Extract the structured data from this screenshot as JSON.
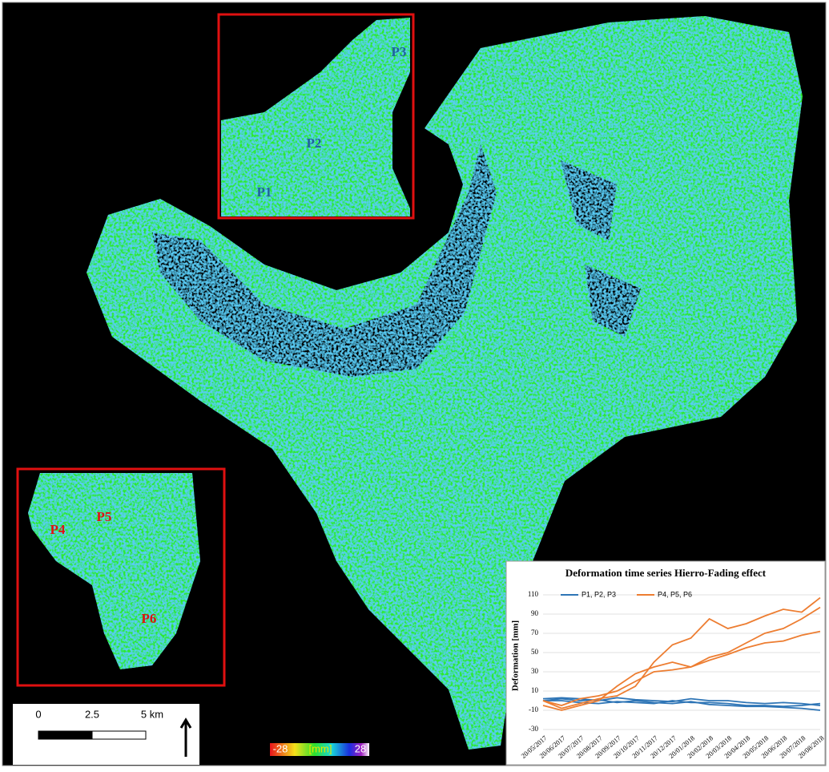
{
  "map": {
    "north_inset_labels": [
      "P1",
      "P2",
      "P3"
    ],
    "south_inset_labels": [
      "P4",
      "P5",
      "P6"
    ],
    "scale_bar": [
      "0",
      "2.5",
      "5 km"
    ],
    "color_bar": {
      "min": "-28",
      "unit": "[mm]",
      "max": "28"
    }
  },
  "chart_data": {
    "type": "line",
    "title": "Deformation time series Hierro-Fading effect",
    "y_label": "Deformation [mm]",
    "categories": [
      "20/05/2017",
      "20/06/2017",
      "20/07/2017",
      "20/08/2017",
      "20/09/2017",
      "20/10/2017",
      "20/11/2017",
      "20/12/2017",
      "20/01/2018",
      "20/02/2018",
      "20/03/2018",
      "20/04/2018",
      "20/05/2018",
      "20/06/2018",
      "20/07/2018",
      "20/08/2018"
    ],
    "series": [
      {
        "name": "P1, P2, P3",
        "color": "#2e75b6",
        "values": [
          [
            0,
            2,
            0,
            1,
            -2,
            0,
            -2,
            -3,
            -1,
            -4,
            -5,
            -6,
            -6,
            -7,
            -8,
            -10
          ],
          [
            2,
            3,
            2,
            0,
            3,
            1,
            0,
            -1,
            2,
            0,
            0,
            -2,
            -3,
            -2,
            -3,
            -5
          ],
          [
            0,
            0,
            -2,
            -3,
            -1,
            -2,
            -3,
            0,
            -2,
            -2,
            -3,
            -5,
            -5,
            -6,
            -5,
            -3
          ]
        ]
      },
      {
        "name": "P4, P5, P6",
        "color": "#ed7d31",
        "values": [
          [
            0,
            -8,
            -3,
            2,
            5,
            15,
            40,
            58,
            65,
            85,
            75,
            80,
            88,
            95,
            92,
            107
          ],
          [
            -5,
            -10,
            -5,
            0,
            15,
            28,
            35,
            40,
            35,
            45,
            50,
            60,
            70,
            75,
            85,
            97
          ],
          [
            0,
            -5,
            2,
            5,
            10,
            20,
            30,
            32,
            35,
            42,
            48,
            55,
            60,
            62,
            68,
            72
          ]
        ]
      }
    ],
    "ylim": [
      -30,
      110
    ],
    "yticks": [
      -30,
      -10,
      10,
      30,
      50,
      70,
      90,
      110
    ],
    "grid": true
  }
}
